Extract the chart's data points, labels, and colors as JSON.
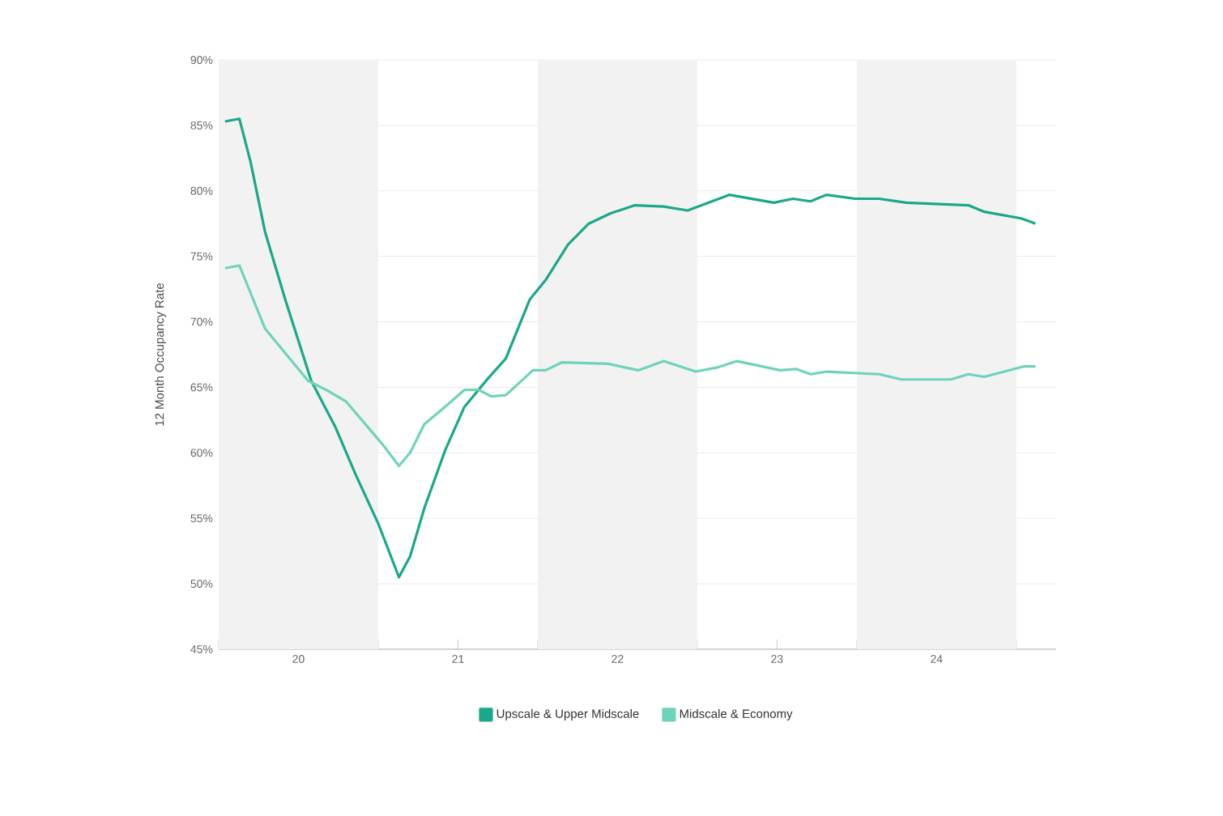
{
  "chart_data": {
    "type": "line",
    "ylabel": "12 Month Occupancy Rate",
    "xlim": [
      19.5,
      24.75
    ],
    "xticks": [
      {
        "value": 19.5,
        "label": null
      },
      20,
      {
        "value": 20.5,
        "label": null
      },
      21,
      {
        "value": 21.5,
        "label": null
      },
      22,
      {
        "value": 22.5,
        "label": null
      },
      23,
      {
        "value": 23.5,
        "label": null
      },
      24,
      {
        "value": 24.5,
        "label": null
      }
    ],
    "ylim": [
      45,
      90
    ],
    "yticks": [
      {
        "value": 45,
        "label": "45%"
      },
      {
        "value": 50,
        "label": "50%"
      },
      {
        "value": 55,
        "label": "55%"
      },
      {
        "value": 60,
        "label": "60%"
      },
      {
        "value": 65,
        "label": "65%"
      },
      {
        "value": 70,
        "label": "70%"
      },
      {
        "value": 75,
        "label": "75%"
      },
      {
        "value": 80,
        "label": "80%"
      },
      {
        "value": 85,
        "label": "85%"
      },
      {
        "value": 90,
        "label": "90%"
      }
    ],
    "grid": "y",
    "legend": "bottom",
    "marker": "none",
    "line_style": "solid",
    "bands": [
      {
        "axis": "x",
        "from": 19.5,
        "to": 20.5,
        "color": "#f2f2f2"
      },
      {
        "axis": "x",
        "from": 21.5,
        "to": 22.5,
        "color": "#f2f2f2"
      },
      {
        "axis": "x",
        "from": 23.5,
        "to": 24.5,
        "color": "#f2f2f2"
      }
    ],
    "series": [
      {
        "name": "Upscale & Upper Midscale",
        "color": "#1aa88a",
        "x": [
          19.54,
          19.63,
          19.7,
          19.79,
          19.92,
          20.08,
          20.23,
          20.36,
          20.5,
          20.63,
          20.7,
          20.79,
          20.92,
          21.04,
          21.19,
          21.3,
          21.45,
          21.55,
          21.69,
          21.82,
          21.96,
          22.11,
          22.29,
          22.44,
          22.7,
          22.98,
          23.1,
          23.21,
          23.31,
          23.49,
          23.64,
          23.81,
          24.2,
          24.3,
          24.53,
          24.62
        ],
        "values": [
          85.3,
          85.5,
          82.2,
          76.9,
          71.6,
          65.5,
          62.0,
          58.3,
          54.6,
          50.5,
          52.1,
          55.8,
          60.2,
          63.5,
          65.7,
          67.2,
          71.7,
          73.2,
          75.9,
          77.5,
          78.3,
          78.9,
          78.8,
          78.5,
          79.7,
          79.1,
          79.4,
          79.2,
          79.7,
          79.4,
          79.4,
          79.1,
          78.9,
          78.4,
          77.9,
          77.5
        ]
      },
      {
        "name": "Midscale & Economy",
        "color": "#6fd3bc",
        "x": [
          19.54,
          19.63,
          19.79,
          20.06,
          20.19,
          20.3,
          20.53,
          20.63,
          20.7,
          20.79,
          20.89,
          21.04,
          21.13,
          21.21,
          21.3,
          21.47,
          21.55,
          21.65,
          21.94,
          22.13,
          22.29,
          22.49,
          22.62,
          22.75,
          23.02,
          23.12,
          23.21,
          23.31,
          23.64,
          23.78,
          24.09,
          24.2,
          24.3,
          24.55,
          24.62
        ],
        "values": [
          74.1,
          74.3,
          69.5,
          65.5,
          64.7,
          63.9,
          60.6,
          59.0,
          60.0,
          62.2,
          63.2,
          64.8,
          64.8,
          64.3,
          64.4,
          66.3,
          66.3,
          66.9,
          66.8,
          66.3,
          67.0,
          66.2,
          66.5,
          67.0,
          66.3,
          66.4,
          66.0,
          66.2,
          66.0,
          65.6,
          65.6,
          66.0,
          65.8,
          66.6,
          66.6
        ]
      }
    ]
  }
}
